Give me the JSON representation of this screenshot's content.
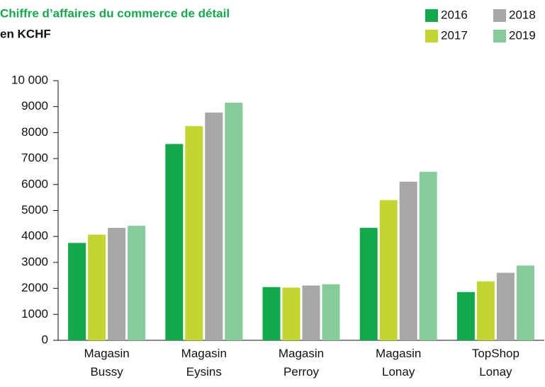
{
  "chart_data": {
    "type": "bar",
    "title": "Chiffre d’affaires du commerce de détail",
    "subtitle": "en KCHF",
    "categories": [
      "Magasin\nBussy",
      "Magasin\nEysins",
      "Magasin\nPerroy",
      "Magasin\nLonay",
      "TopShop\nLonay"
    ],
    "series": [
      {
        "name": "2016",
        "color": "#13a84a",
        "values": [
          3750,
          7560,
          2050,
          4330,
          1860
        ]
      },
      {
        "name": "2017",
        "color": "#c3d62f",
        "values": [
          4070,
          8250,
          2030,
          5400,
          2270
        ]
      },
      {
        "name": "2018",
        "color": "#a7a7a8",
        "values": [
          4330,
          8770,
          2110,
          6110,
          2600
        ]
      },
      {
        "name": "2019",
        "color": "#86cc9a",
        "values": [
          4410,
          9150,
          2160,
          6490,
          2880
        ]
      }
    ],
    "ylim": [
      0,
      10000
    ],
    "yticks": [
      0,
      1000,
      2000,
      3000,
      4000,
      5000,
      6000,
      7000,
      8000,
      9000,
      {
        "value": 10000,
        "label": "10 000"
      }
    ],
    "grid": false,
    "legend": "top-right"
  }
}
